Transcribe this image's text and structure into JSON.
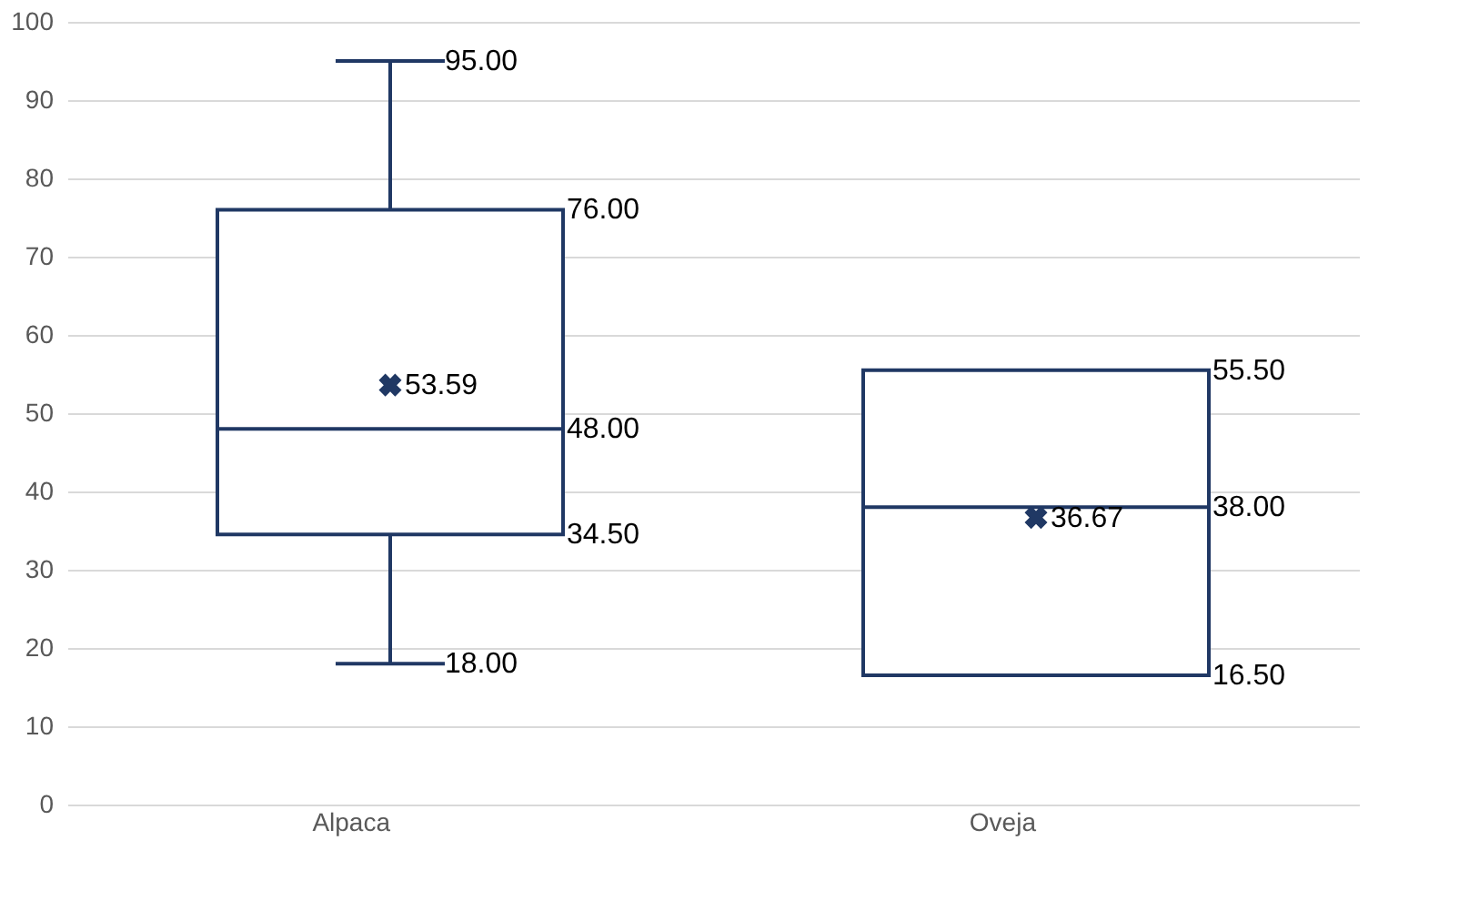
{
  "chart_data": {
    "type": "box",
    "categories": [
      "Alpaca",
      "Oveja"
    ],
    "boxes": [
      {
        "low": 18,
        "q1": 34.5,
        "median": 48,
        "q3": 76,
        "high": 95,
        "mean": 53.59
      },
      {
        "low": 16.5,
        "q1": 16.5,
        "median": 38,
        "q3": 55.5,
        "high": 55.5,
        "mean": 36.67
      }
    ],
    "color": "#203864",
    "ylim": [
      0,
      100
    ],
    "yticks": [
      0,
      10,
      20,
      30,
      40,
      50,
      60,
      70,
      80,
      90,
      100
    ],
    "grid": "y",
    "marker": "cross",
    "annotations": [
      "95.00",
      "76.00",
      "53.59",
      "48.00",
      "34.50",
      "18.00",
      "55.50",
      "38.00",
      "36.67",
      "16.50"
    ]
  }
}
